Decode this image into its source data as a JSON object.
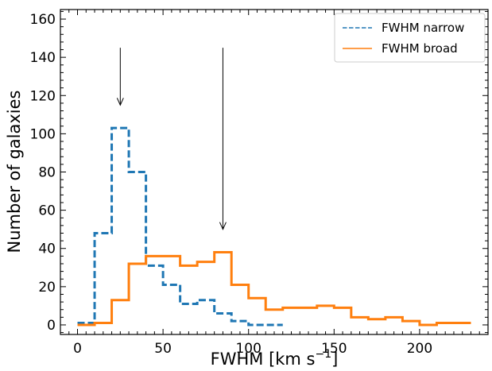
{
  "chart_data": {
    "type": "histogram",
    "xlabel": "FWHM [km s⁻¹]",
    "xlabel_base": "FWHM [km s",
    "xlabel_sup": "−1",
    "xlabel_end": "]",
    "ylabel": "Number of galaxies",
    "xlim": [
      -10,
      240
    ],
    "ylim": [
      -5,
      165
    ],
    "xticks": [
      0,
      50,
      100,
      150,
      200
    ],
    "xtick_labels": [
      "0",
      "50",
      "100",
      "150",
      "200"
    ],
    "yticks": [
      0,
      20,
      40,
      60,
      80,
      100,
      120,
      140,
      160
    ],
    "ytick_labels": [
      "0",
      "20",
      "40",
      "60",
      "80",
      "100",
      "120",
      "140",
      "160"
    ],
    "grid": false,
    "legend_position": "top-right",
    "series": [
      {
        "name": "FWHM narrow",
        "style": "dashed",
        "color": "#1f77b4",
        "bin_edges": [
          0,
          10,
          20,
          30,
          40,
          50,
          60,
          70,
          80,
          90,
          100,
          110,
          120
        ],
        "counts": [
          1,
          48,
          103,
          80,
          31,
          21,
          11,
          13,
          6,
          2,
          0,
          0
        ]
      },
      {
        "name": "FWHM broad",
        "style": "solid",
        "color": "#ff7f0e",
        "bin_edges": [
          0,
          10,
          20,
          30,
          40,
          50,
          60,
          70,
          80,
          90,
          100,
          110,
          120,
          130,
          140,
          150,
          160,
          170,
          180,
          190,
          200,
          210,
          220,
          230
        ],
        "counts": [
          0,
          1,
          13,
          32,
          36,
          36,
          31,
          33,
          38,
          21,
          14,
          8,
          9,
          9,
          10,
          9,
          4,
          3,
          4,
          2,
          0,
          1,
          1
        ]
      }
    ],
    "annotations": [
      {
        "type": "arrow",
        "x": 25,
        "y_start": 145,
        "y_end": 115
      },
      {
        "type": "arrow",
        "x": 85,
        "y_start": 145,
        "y_end": 50
      }
    ]
  }
}
